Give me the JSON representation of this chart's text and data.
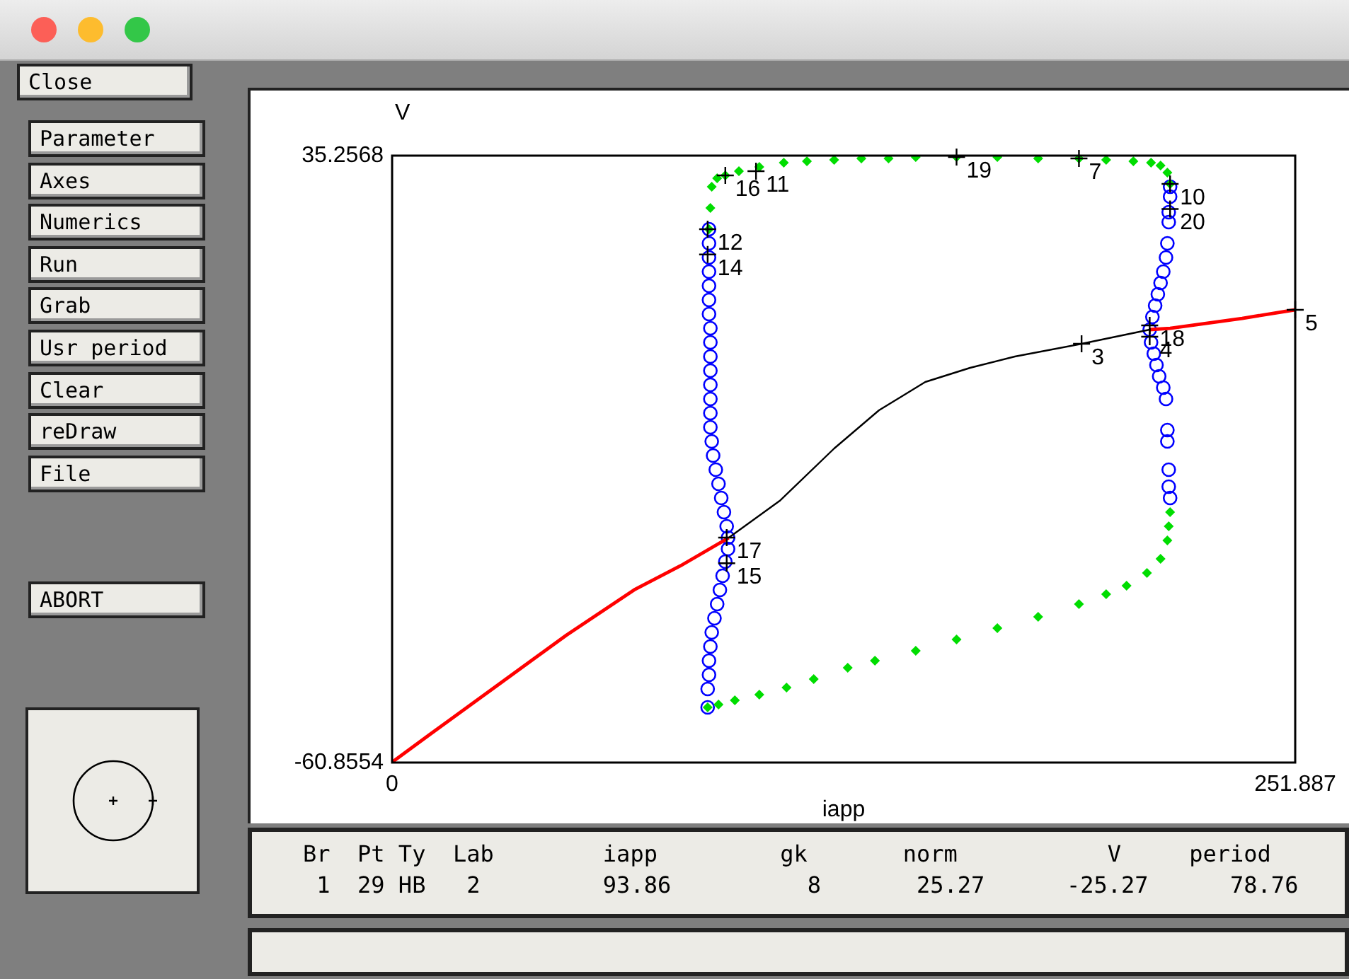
{
  "chart_data": {
    "type": "line",
    "xlabel": "iapp",
    "ylabel": "V",
    "xlim": [
      0,
      251.887
    ],
    "xticks": [
      0,
      251.887
    ],
    "ylim": [
      -60.8554,
      35.2568
    ],
    "yticks": [
      -60.8554,
      35.2568
    ],
    "series": [
      {
        "type": "line",
        "color": "#ff0000",
        "x": [
          0,
          10.6,
          29.6,
          48.6,
          67.5,
          80.4,
          93.86
        ],
        "values": [
          -60.8,
          -56.38,
          -48.53,
          -40.69,
          -33.52,
          -29.71,
          -25.27
        ]
      },
      {
        "type": "line",
        "color": "#000000",
        "x": [
          93.86,
          108.1,
          123.3,
          135.8,
          148.7,
          161.2,
          173.7,
          192.3,
          211.3
        ],
        "values": [
          -25.27,
          -19.41,
          -11.12,
          -5.07,
          -0.59,
          1.65,
          3.44,
          5.46,
          7.7
        ]
      },
      {
        "type": "line",
        "color": "#ff0000",
        "x": [
          211.3,
          217.0,
          237.1,
          251.887
        ],
        "values": [
          7.7,
          7.92,
          9.49,
          10.84
        ]
      },
      {
        "type": "scatter",
        "marker": "diamond",
        "color": "#00dd00",
        "x": [
          88.39,
          88.77,
          89.15,
          90.66,
          92.94,
          96.73,
          102.42,
          109.25,
          115.7,
          123.29,
          130.88,
          138.46,
          146.05,
          157.43,
          168.81,
          180.19,
          191.57,
          199.16,
          206.75,
          211.68,
          214.33,
          216.23,
          216.99,
          88.01,
          91.04,
          95.6,
          102.42,
          110.01,
          117.6,
          127.08,
          134.67,
          146.05,
          157.43,
          168.81,
          180.19,
          191.57,
          199.16,
          204.85,
          210.54,
          214.33,
          216.23,
          216.61,
          216.99
        ],
        "values": [
          23.61,
          26.97,
          30.33,
          31.67,
          32.12,
          32.79,
          33.46,
          34.14,
          34.36,
          34.58,
          34.81,
          34.81,
          35.03,
          35.03,
          35.03,
          34.81,
          34.81,
          34.58,
          34.36,
          34.14,
          33.69,
          32.57,
          30.78,
          -52.12,
          -51.67,
          -51.0,
          -50.1,
          -48.98,
          -47.64,
          -45.84,
          -44.72,
          -43.16,
          -41.36,
          -39.57,
          -37.78,
          -35.76,
          -34.2,
          -32.85,
          -30.83,
          -28.59,
          -25.68,
          -23.44,
          -21.2
        ]
      },
      {
        "type": "scatter",
        "marker": "circle",
        "color": "#0000ff",
        "x": [
          88.39,
          88.39,
          88.39,
          88.39,
          88.39,
          88.39,
          88.39,
          88.77,
          88.77,
          88.77,
          88.77,
          88.77,
          88.77,
          88.77,
          88.77,
          89.15,
          89.53,
          90.28,
          91.04,
          91.8,
          92.56,
          93.32,
          93.7,
          93.7,
          92.94,
          92.18,
          91.42,
          90.66,
          89.91,
          89.15,
          88.77,
          88.39,
          88.39,
          88.01,
          88.01,
          216.99,
          216.99,
          216.61,
          216.61,
          216.23,
          215.85,
          215.09,
          214.33,
          213.57,
          212.82,
          212.06,
          211.3,
          211.68,
          212.44,
          213.19,
          213.95,
          215.09,
          215.85,
          216.23,
          216.23,
          216.61,
          216.61,
          216.99
        ],
        "values": [
          23.61,
          21.37,
          19.13,
          16.89,
          14.65,
          12.41,
          10.17,
          7.92,
          5.68,
          3.44,
          1.2,
          -1.04,
          -3.28,
          -5.52,
          -7.76,
          -10.0,
          -12.24,
          -14.48,
          -16.72,
          -18.96,
          -21.2,
          -23.44,
          -25.23,
          -27.03,
          -29.04,
          -31.28,
          -33.52,
          -35.76,
          -38.0,
          -40.24,
          -42.48,
          -44.72,
          -46.96,
          -49.2,
          -52.12,
          30.33,
          28.76,
          26.3,
          24.73,
          21.37,
          19.13,
          16.89,
          15.09,
          13.3,
          11.51,
          9.72,
          7.7,
          5.68,
          3.89,
          2.1,
          0.31,
          -1.48,
          -3.28,
          -8.21,
          -10.0,
          -14.48,
          -17.17,
          -18.96
        ]
      }
    ],
    "annotations": [
      "Close",
      "Parameter",
      "Axes",
      "Numerics",
      "Run",
      "Grab",
      "Usr period",
      "Clear",
      "reDraw",
      "File",
      "ABORT",
      "Br  Pt Ty  Lab        iapp         gk       norm           V     period",
      " 1  29 HB   2         93.86          8       25.27      -25.27      78.76",
      {
        "text": "16",
        "x": 92.94,
        "y": 32.12
      },
      {
        "text": "11",
        "x": 101.5,
        "y": 32.79
      },
      {
        "text": "12",
        "x": 88.01,
        "y": 23.61
      },
      {
        "text": "14",
        "x": 88.01,
        "y": 19.6
      },
      {
        "text": "19",
        "x": 157.43,
        "y": 35.03
      },
      {
        "text": "7",
        "x": 191.57,
        "y": 34.81
      },
      {
        "text": "10",
        "x": 216.99,
        "y": 30.78
      },
      {
        "text": "20",
        "x": 216.99,
        "y": 26.8
      },
      {
        "text": "3",
        "x": 192.3,
        "y": 5.46
      },
      {
        "text": "5",
        "x": 251.887,
        "y": 10.84
      },
      {
        "text": "18",
        "x": 211.3,
        "y": 8.37
      },
      {
        "text": "4",
        "x": 211.3,
        "y": 6.58
      },
      {
        "text": "17",
        "x": 93.32,
        "y": -25.23
      },
      {
        "text": "15",
        "x": 93.32,
        "y": -29.3
      }
    ]
  }
}
